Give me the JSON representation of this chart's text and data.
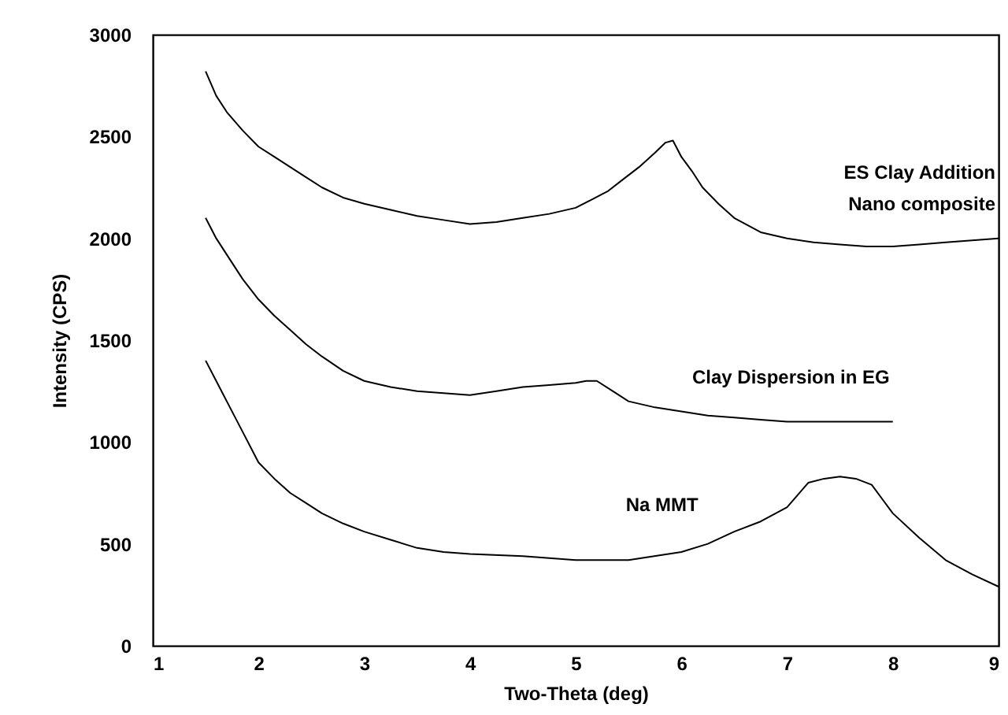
{
  "chart_data": {
    "type": "line",
    "xlabel": "Two-Theta (deg)",
    "ylabel": "Intensity (CPS)",
    "xlim": [
      1,
      9
    ],
    "xticks": [
      1,
      2,
      3,
      4,
      5,
      6,
      7,
      8,
      9
    ],
    "ylim": [
      0,
      3000
    ],
    "yticks": [
      0,
      500,
      1000,
      1500,
      2000,
      2500,
      3000
    ],
    "grid": false,
    "legend": false,
    "marker": "none",
    "line_style": "solid",
    "series": [
      {
        "name": "ES Clay Addition\nNano composite",
        "color": "#000000",
        "x": [
          1.5,
          1.6,
          1.7,
          1.85,
          2,
          2.15,
          2.3,
          2.45,
          2.6,
          2.8,
          3,
          3.25,
          3.5,
          3.75,
          4,
          4.25,
          4.5,
          4.75,
          5,
          5.15,
          5.3,
          5.45,
          5.6,
          5.75,
          5.85,
          5.92,
          6,
          6.1,
          6.2,
          6.35,
          6.5,
          6.75,
          7,
          7.25,
          7.5,
          7.75,
          8,
          8.25,
          8.5,
          8.75,
          9
        ],
        "values": [
          2820,
          2700,
          2620,
          2530,
          2450,
          2400,
          2350,
          2300,
          2250,
          2200,
          2170,
          2140,
          2110,
          2090,
          2070,
          2080,
          2100,
          2120,
          2150,
          2190,
          2230,
          2290,
          2350,
          2420,
          2470,
          2480,
          2400,
          2330,
          2250,
          2170,
          2100,
          2030,
          2000,
          1980,
          1970,
          1960,
          1960,
          1970,
          1980,
          1990,
          2000
        ]
      },
      {
        "name": "Clay Dispersion in EG",
        "color": "#000000",
        "x": [
          1.5,
          1.6,
          1.7,
          1.85,
          2,
          2.15,
          2.3,
          2.45,
          2.6,
          2.8,
          3,
          3.25,
          3.5,
          3.75,
          4,
          4.25,
          4.5,
          4.75,
          5,
          5.1,
          5.2,
          5.35,
          5.5,
          5.75,
          6,
          6.25,
          6.5,
          6.75,
          7,
          7.25,
          7.5,
          7.75,
          8
        ],
        "values": [
          2100,
          2000,
          1920,
          1800,
          1700,
          1620,
          1550,
          1480,
          1420,
          1350,
          1300,
          1270,
          1250,
          1240,
          1230,
          1250,
          1270,
          1280,
          1290,
          1300,
          1300,
          1250,
          1200,
          1170,
          1150,
          1130,
          1120,
          1110,
          1100,
          1100,
          1100,
          1100,
          1100
        ]
      },
      {
        "name": "Na MMT",
        "color": "#000000",
        "x": [
          1.5,
          1.6,
          1.7,
          1.85,
          2,
          2.15,
          2.3,
          2.45,
          2.6,
          2.8,
          3,
          3.25,
          3.5,
          3.75,
          4,
          4.5,
          5,
          5.5,
          6,
          6.25,
          6.5,
          6.75,
          7,
          7.1,
          7.2,
          7.35,
          7.5,
          7.65,
          7.8,
          7.9,
          8,
          8.25,
          8.5,
          8.75,
          9
        ],
        "values": [
          1400,
          1300,
          1200,
          1050,
          900,
          820,
          750,
          700,
          650,
          600,
          560,
          520,
          480,
          460,
          450,
          440,
          420,
          420,
          460,
          500,
          560,
          610,
          680,
          740,
          800,
          820,
          830,
          820,
          790,
          720,
          650,
          530,
          420,
          350,
          290
        ]
      }
    ]
  }
}
